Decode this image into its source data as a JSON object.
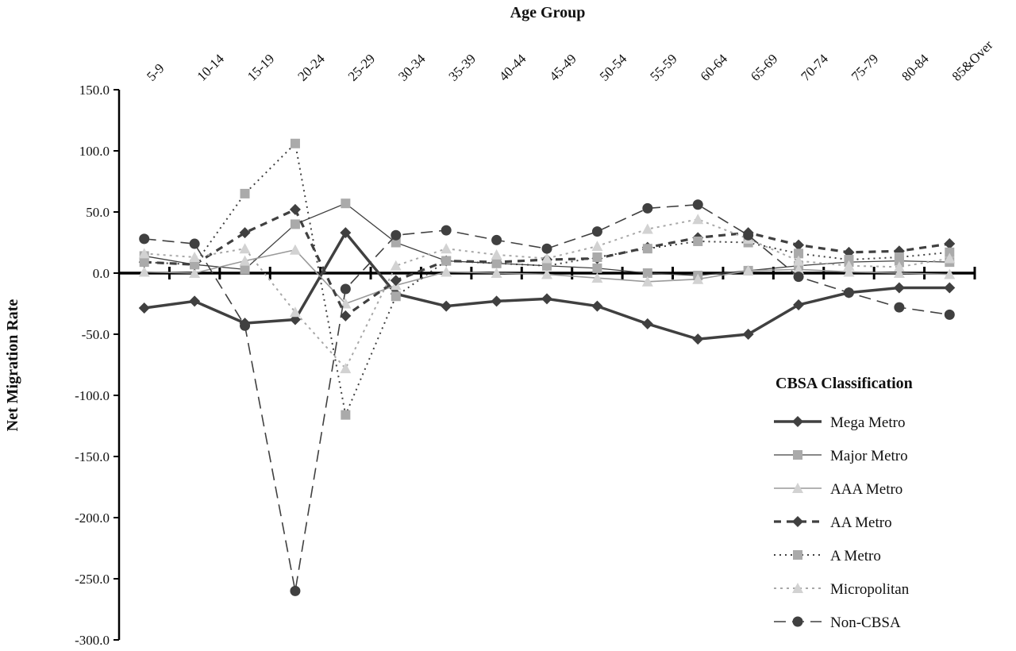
{
  "chart_data": {
    "type": "line",
    "title": "",
    "xlabel": "Age Group",
    "ylabel": "Net Migration Rate",
    "ylim": [
      -300,
      150
    ],
    "yticks": [
      "150.0",
      "100.0",
      "50.0",
      "0.0",
      "-50.0",
      "-100.0",
      "-150.0",
      "-200.0",
      "-250.0",
      "-300.0"
    ],
    "ytick_values": [
      150,
      100,
      50,
      0,
      -50,
      -100,
      -150,
      -200,
      -250,
      -300
    ],
    "categories": [
      "5-9",
      "10-14",
      "15-19",
      "20-24",
      "25-29",
      "30-34",
      "35-39",
      "40-44",
      "45-49",
      "50-54",
      "55-59",
      "60-64",
      "65-69",
      "70-74",
      "75-79",
      "80-84",
      "85&Over"
    ],
    "legend_title": "CBSA Classification",
    "legend_position": "bottom-right",
    "grid": false,
    "series": [
      {
        "name": "Mega Metro",
        "marker": "diamond",
        "values": [
          -28.6,
          -23,
          -41,
          -38,
          33,
          -17,
          -27,
          -23,
          -21,
          -27,
          -41.5,
          -54,
          -50,
          -26,
          -16,
          -12,
          -12
        ]
      },
      {
        "name": "Major Metro",
        "marker": "square",
        "values": [
          14,
          7,
          3,
          40,
          57,
          25,
          10,
          8,
          6,
          4,
          0,
          -2,
          2,
          6,
          9,
          10,
          9
        ]
      },
      {
        "name": "AAA Metro",
        "marker": "triangle",
        "values": [
          1,
          0,
          10,
          19,
          -25,
          -10,
          1,
          0,
          -1,
          -4,
          -7,
          -5,
          2,
          3,
          1,
          0,
          -1
        ]
      },
      {
        "name": "AA Metro",
        "marker": "diamond",
        "values": [
          9,
          7,
          33,
          52,
          -35,
          -6,
          10,
          9,
          11,
          12,
          21,
          29,
          33,
          23,
          17,
          18,
          24
        ]
      },
      {
        "name": "A Metro",
        "marker": "square",
        "values": [
          9,
          7,
          65,
          106,
          -116,
          -19,
          10,
          8,
          6,
          13,
          20,
          26,
          25,
          16,
          11,
          13,
          17
        ]
      },
      {
        "name": "Micropolitan",
        "marker": "triangle",
        "values": [
          16,
          13,
          20,
          -32,
          -78,
          6,
          20,
          15,
          12,
          22,
          36,
          44,
          28,
          10,
          6,
          5,
          12
        ]
      },
      {
        "name": "Non-CBSA",
        "marker": "circle",
        "values": [
          28,
          24,
          -43,
          -260,
          -13,
          31,
          35,
          27,
          20,
          34,
          53,
          56,
          31,
          -3,
          -16,
          -28,
          -34
        ]
      }
    ]
  }
}
